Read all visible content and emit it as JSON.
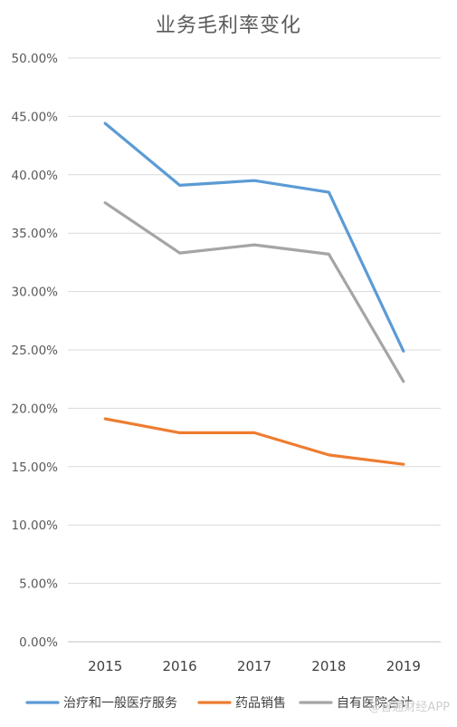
{
  "chart_data": {
    "type": "line",
    "title": "业务毛利率变化",
    "xlabel": "",
    "ylabel": "",
    "x": [
      "2015",
      "2016",
      "2017",
      "2018",
      "2019"
    ],
    "ylim": [
      0,
      50
    ],
    "y_ticks": [
      "0.00%",
      "5.00%",
      "10.00%",
      "15.00%",
      "20.00%",
      "25.00%",
      "30.00%",
      "35.00%",
      "40.00%",
      "45.00%",
      "50.00%"
    ],
    "grid": true,
    "legend_position": "bottom",
    "series": [
      {
        "name": "治疗和一般医疗服务",
        "color": "#5b9bd5",
        "values": [
          44.4,
          39.1,
          39.5,
          38.5,
          24.9
        ]
      },
      {
        "name": "药品销售",
        "color": "#ed7d31",
        "values": [
          19.1,
          17.9,
          17.9,
          16.0,
          15.2
        ]
      },
      {
        "name": "自有医院合计",
        "color": "#a5a5a5",
        "values": [
          37.6,
          33.3,
          34.0,
          33.2,
          22.3
        ]
      }
    ]
  },
  "watermark": "@智通财经APP"
}
